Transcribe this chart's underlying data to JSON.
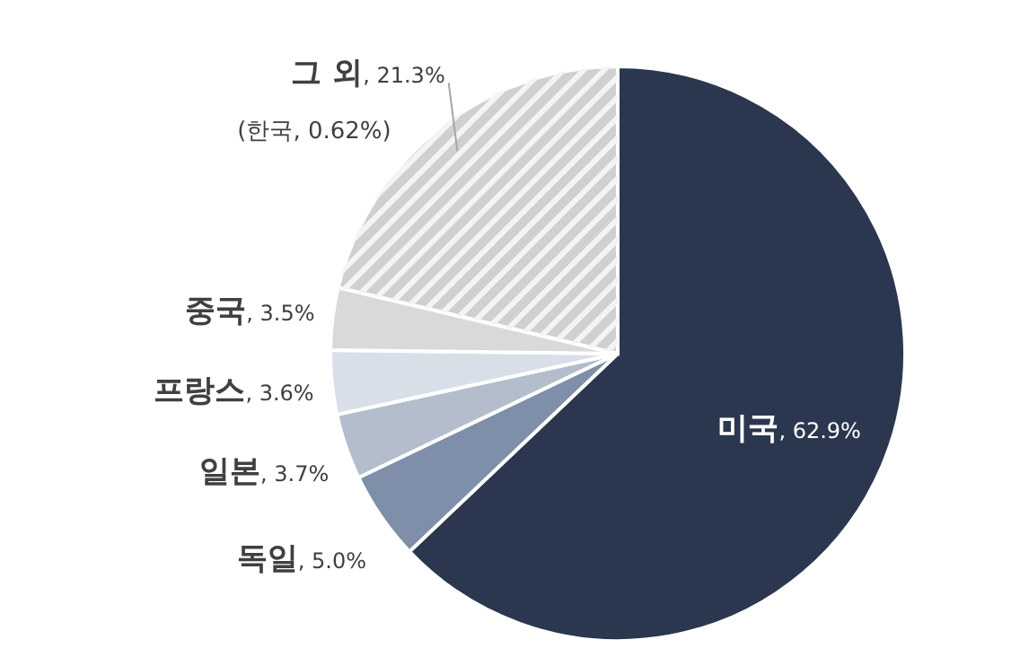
{
  "chart_data": {
    "type": "pie",
    "categories": [
      "미국",
      "독일",
      "일본",
      "프랑스",
      "중국",
      "그 외"
    ],
    "values": [
      62.9,
      5.0,
      3.7,
      3.6,
      3.5,
      21.3
    ],
    "colors": [
      "#2b374f",
      "#7f8fa9",
      "#b3bdcc",
      "#d9dfe8",
      "#d9d9d9",
      "#d0d0d0"
    ],
    "value_labels": [
      ", 62.9%",
      ", 5.0%",
      ", 3.7%",
      ", 3.6%",
      ", 3.5%",
      ", 21.3%"
    ],
    "annotations": [
      "(한국, 0.62%)"
    ]
  }
}
